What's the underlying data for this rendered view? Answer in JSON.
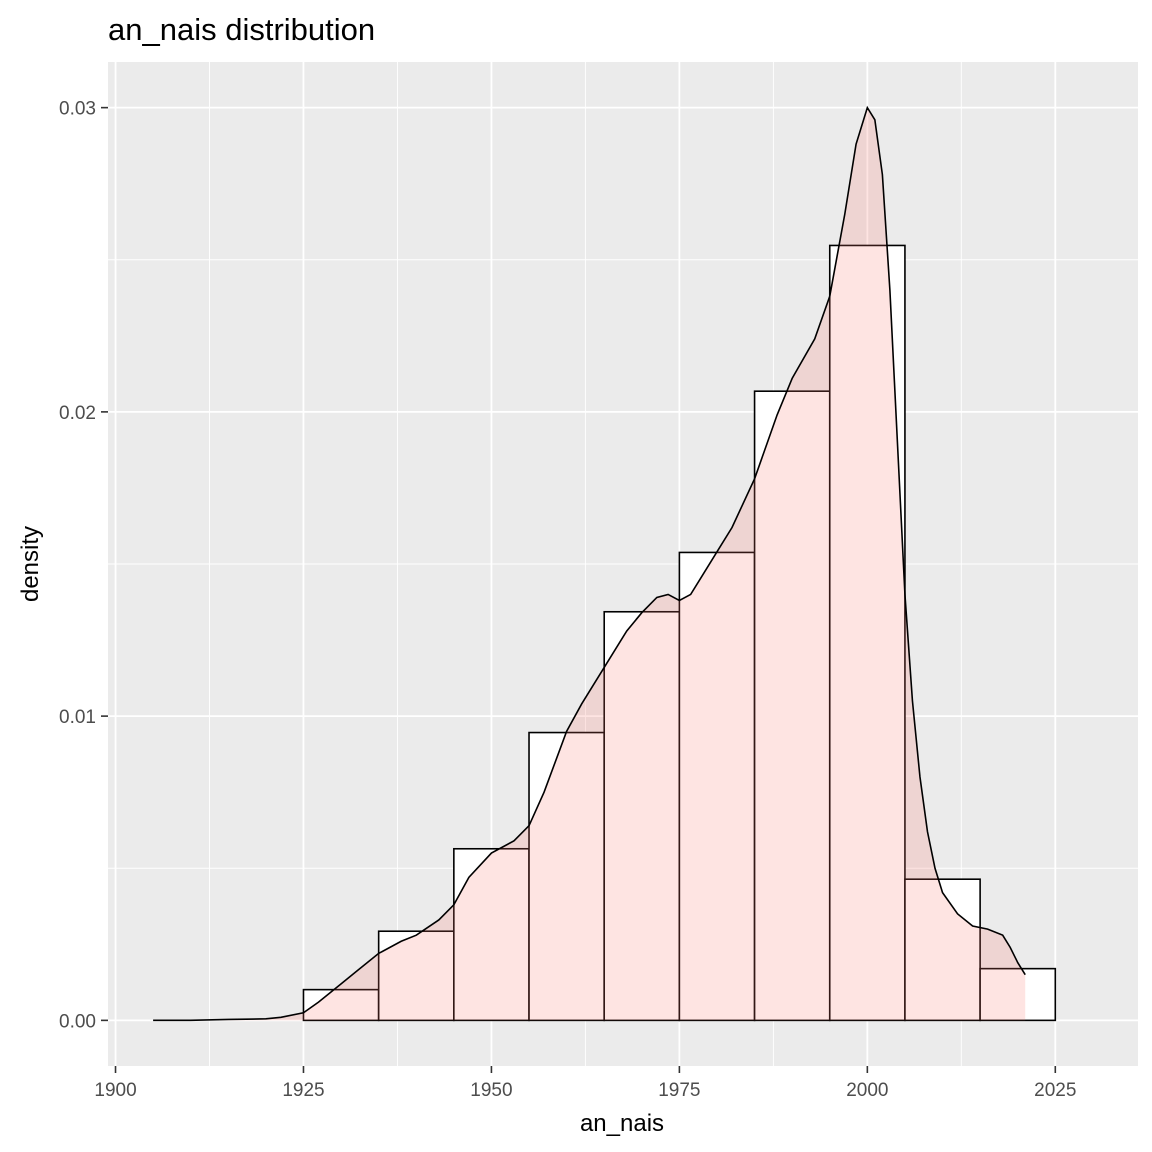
{
  "chart_data": {
    "type": "histogram",
    "title": "an_nais distribution",
    "xlabel": "an_nais",
    "ylabel": "density",
    "xlim": [
      1899,
      2036
    ],
    "ylim": [
      -0.0015,
      0.0315
    ],
    "x_ticks": [
      1900,
      1925,
      1950,
      1975,
      2000,
      2025
    ],
    "x_tick_labels": [
      "1900",
      "1925",
      "1950",
      "1975",
      "2000",
      "2025"
    ],
    "y_ticks": [
      0,
      0.01,
      0.02,
      0.03
    ],
    "y_tick_labels": [
      "0.00",
      "0.01",
      "0.02",
      "0.03"
    ],
    "grid": true,
    "legend": "none",
    "bin_width": 10,
    "bins": [
      {
        "x0": 1925,
        "x1": 1935,
        "density": 0.00101
      },
      {
        "x0": 1935,
        "x1": 1945,
        "density": 0.00293
      },
      {
        "x0": 1945,
        "x1": 1955,
        "density": 0.00564
      },
      {
        "x0": 1955,
        "x1": 1965,
        "density": 0.00946
      },
      {
        "x0": 1965,
        "x1": 1975,
        "density": 0.01343
      },
      {
        "x0": 1975,
        "x1": 1985,
        "density": 0.01538
      },
      {
        "x0": 1985,
        "x1": 1995,
        "density": 0.02068
      },
      {
        "x0": 1995,
        "x1": 2005,
        "density": 0.02547
      },
      {
        "x0": 2005,
        "x1": 2015,
        "density": 0.00464
      },
      {
        "x0": 2015,
        "x1": 2025,
        "density": 0.0017
      }
    ],
    "density_curve": {
      "x": [
        1905,
        1910,
        1915,
        1920,
        1922,
        1925,
        1927,
        1930,
        1932,
        1935,
        1938,
        1940,
        1943,
        1945,
        1947,
        1950,
        1953,
        1955,
        1957,
        1960,
        1962,
        1965,
        1968,
        1970,
        1972,
        1973.5,
        1975,
        1976.5,
        1978,
        1980,
        1982,
        1985,
        1988,
        1990,
        1993,
        1995,
        1997,
        1998.5,
        2000,
        2001,
        2002,
        2003,
        2004,
        2005,
        2006,
        2007,
        2008,
        2009,
        2010,
        2012,
        2014,
        2016,
        2018,
        2019,
        2020,
        2021
      ],
      "y": [
        0,
        0,
        3e-05,
        5e-05,
        0.0001,
        0.00025,
        0.0006,
        0.0012,
        0.0016,
        0.0022,
        0.0026,
        0.0028,
        0.0033,
        0.0038,
        0.0047,
        0.0055,
        0.0059,
        0.0064,
        0.0075,
        0.0095,
        0.0104,
        0.0116,
        0.0128,
        0.0134,
        0.0139,
        0.014,
        0.0138,
        0.014,
        0.0146,
        0.0154,
        0.0162,
        0.0178,
        0.0199,
        0.0211,
        0.0224,
        0.0238,
        0.0265,
        0.0288,
        0.03,
        0.0296,
        0.0278,
        0.024,
        0.019,
        0.014,
        0.0105,
        0.008,
        0.0062,
        0.005,
        0.0042,
        0.0035,
        0.0031,
        0.003,
        0.0028,
        0.0024,
        0.0019,
        0.0015
      ],
      "fill": "#f8766d",
      "fill_opacity": 0.2
    },
    "colors": {
      "panel_background": "#ebebeb",
      "grid_major": "#ffffff",
      "bar_fill": "#ffffff",
      "bar_outline": "#000000",
      "curve_line": "#000000"
    }
  }
}
